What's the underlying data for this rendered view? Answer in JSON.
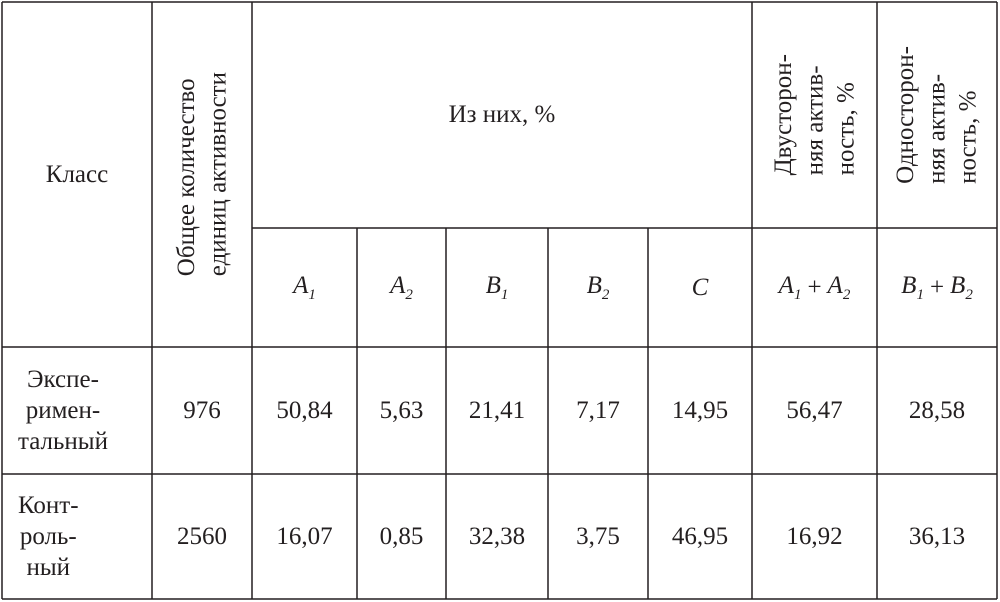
{
  "header": {
    "class": "Класс",
    "total": [
      "Общее количество",
      "единиц активности"
    ],
    "of_them": "Из них, %",
    "bilateral": [
      "Двусторон-",
      "няя актив-",
      "ность, %"
    ],
    "unilateral": [
      "Односторон-",
      "няя актив-",
      "ность, %"
    ]
  },
  "subheader": [
    {
      "letter": "A",
      "sub": "1"
    },
    {
      "letter": "A",
      "sub": "2"
    },
    {
      "letter": "B",
      "sub": "1"
    },
    {
      "letter": "B",
      "sub": "2"
    },
    {
      "letter": "C"
    }
  ],
  "formulas": [
    {
      "terms": [
        {
          "letter": "A",
          "sub": "1"
        },
        {
          "letter": "A",
          "sub": "2"
        }
      ],
      "op": "+"
    },
    {
      "terms": [
        {
          "letter": "B",
          "sub": "1"
        },
        {
          "letter": "B",
          "sub": "2"
        }
      ],
      "op": "+"
    }
  ],
  "rows": [
    {
      "label": [
        "Экспе-",
        "римен-",
        "тальный"
      ],
      "values": [
        "976",
        "50,84",
        "5,63",
        "21,41",
        "7,17",
        "14,95",
        "56,47",
        "28,58"
      ]
    },
    {
      "label": [
        "Конт-",
        "роль-",
        "ный"
      ],
      "values": [
        "2560",
        "16,07",
        "0,85",
        "32,38",
        "3,75",
        "46,95",
        "16,92",
        "36,13"
      ]
    }
  ]
}
